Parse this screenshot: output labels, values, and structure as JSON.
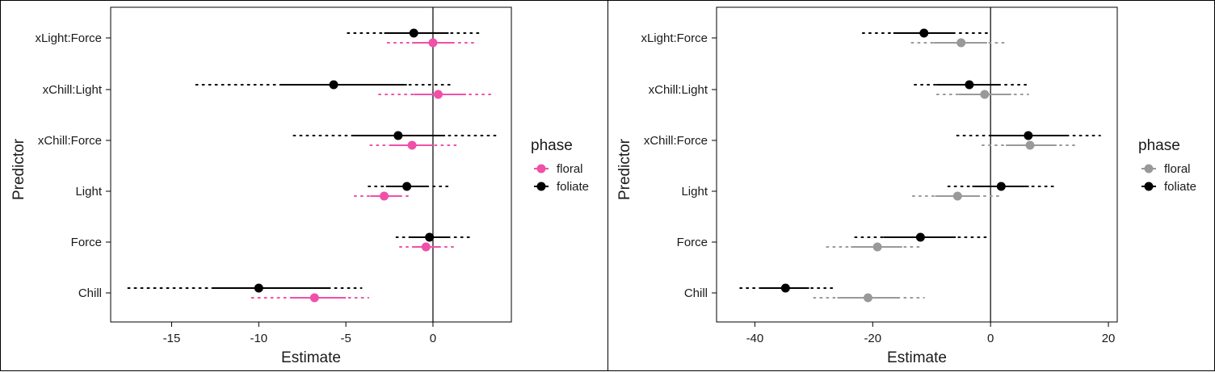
{
  "chart_data": [
    {
      "type": "forest",
      "xlabel": "Estimate",
      "ylabel": "Predictor",
      "categories": [
        "Chill",
        "Force",
        "Light",
        "xChill:Force",
        "xChill:Light",
        "xLight:Force"
      ],
      "xlim": [
        -18.5,
        4.5
      ],
      "xticks": [
        -15,
        -10,
        -5,
        0
      ],
      "tick_labels": [
        "-15",
        "-10",
        "-5",
        "0"
      ],
      "reference_line": 0,
      "legend": {
        "title": "phase",
        "position": "right",
        "entries": [
          "floral",
          "foliate"
        ]
      },
      "series": [
        {
          "name": "floral",
          "color": "#f050a8",
          "values": [
            -6.8,
            -0.4,
            -2.8,
            -1.2,
            0.3,
            0.0
          ],
          "inner_intervals": [
            [
              -8.2,
              -5.0
            ],
            [
              -1.2,
              0.3
            ],
            [
              -3.6,
              -1.9
            ],
            [
              -2.4,
              0.0
            ],
            [
              -1.1,
              1.9
            ],
            [
              -1.2,
              1.1
            ]
          ],
          "outer_intervals": [
            [
              -10.4,
              -3.7
            ],
            [
              -1.9,
              1.2
            ],
            [
              -4.5,
              -1.2
            ],
            [
              -3.6,
              1.5
            ],
            [
              -3.1,
              3.4
            ],
            [
              -2.6,
              2.4
            ]
          ]
        },
        {
          "name": "foliate",
          "color": "#000000",
          "values": [
            -10.0,
            -0.2,
            -1.5,
            -2.0,
            -5.7,
            -1.1
          ],
          "inner_intervals": [
            [
              -12.6,
              -6.0
            ],
            [
              -1.4,
              0.9
            ],
            [
              -2.7,
              -0.3
            ],
            [
              -4.6,
              0.7
            ],
            [
              -8.8,
              -1.5
            ],
            [
              -2.8,
              0.9
            ]
          ],
          "outer_intervals": [
            [
              -17.5,
              -4.1
            ],
            [
              -2.1,
              2.1
            ],
            [
              -3.7,
              0.9
            ],
            [
              -8.0,
              3.6
            ],
            [
              -13.6,
              1.2
            ],
            [
              -4.9,
              2.8
            ]
          ]
        }
      ]
    },
    {
      "type": "forest",
      "xlabel": "Estimate",
      "ylabel": "Predictor",
      "categories": [
        "Chill",
        "Force",
        "Light",
        "xChill:Force",
        "xChill:Light",
        "xLight:Force"
      ],
      "xlim": [
        -46.5,
        21.5
      ],
      "xticks": [
        -40,
        -20,
        0,
        20
      ],
      "tick_labels": [
        "-40",
        "-20",
        "0",
        "20"
      ],
      "reference_line": 0,
      "legend": {
        "title": "phase",
        "position": "right",
        "entries": [
          "floral",
          "foliate"
        ]
      },
      "series": [
        {
          "name": "floral",
          "color": "#999999",
          "values": [
            -20.8,
            -19.2,
            -5.6,
            6.7,
            -1.0,
            -5.0
          ],
          "inner_intervals": [
            [
              -26.0,
              -15.8
            ],
            [
              -23.7,
              -15.0
            ],
            [
              -9.4,
              -1.8
            ],
            [
              2.6,
              11.2
            ],
            [
              -5.4,
              3.5
            ],
            [
              -9.7,
              -0.6
            ]
          ],
          "outer_intervals": [
            [
              -30.0,
              -11.3
            ],
            [
              -27.8,
              -11.4
            ],
            [
              -13.2,
              1.4
            ],
            [
              -1.4,
              15.0
            ],
            [
              -9.1,
              6.4
            ],
            [
              -13.4,
              2.4
            ]
          ]
        },
        {
          "name": "foliate",
          "color": "#000000",
          "values": [
            -34.8,
            -11.9,
            1.8,
            6.4,
            -3.6,
            -11.3
          ],
          "inner_intervals": [
            [
              -39.0,
              -30.8
            ],
            [
              -18.2,
              -5.9
            ],
            [
              -3.1,
              6.5
            ],
            [
              0.0,
              13.1
            ],
            [
              -9.2,
              1.6
            ],
            [
              -16.5,
              -6.2
            ]
          ],
          "outer_intervals": [
            [
              -42.5,
              -26.7
            ],
            [
              -23.0,
              0.0
            ],
            [
              -7.2,
              10.9
            ],
            [
              -5.7,
              18.6
            ],
            [
              -12.9,
              6.2
            ],
            [
              -21.7,
              -0.5
            ]
          ]
        }
      ]
    }
  ]
}
